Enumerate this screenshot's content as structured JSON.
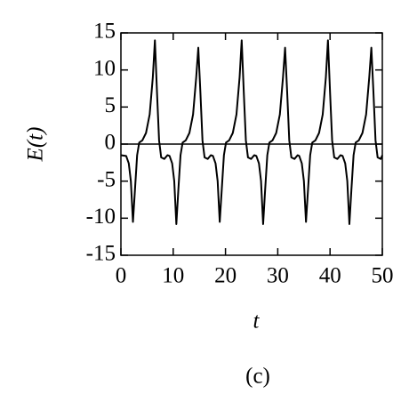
{
  "chart_data": {
    "type": "line",
    "xlabel": "t",
    "ylabel": "E(t)",
    "panel_label": "(c)",
    "xlim": [
      0,
      50
    ],
    "xticks": [
      0,
      10,
      20,
      30,
      40,
      50
    ],
    "ylim": [
      -15,
      15
    ],
    "yticks": [
      -15,
      -10,
      -5,
      0,
      5,
      10,
      15
    ],
    "zero_line": true,
    "series": [
      {
        "color": "#000000",
        "x": [
          0,
          1.0,
          1.5,
          1.9,
          2.3,
          2.7,
          3.1,
          3.5,
          4.1,
          4.8,
          5.5,
          6.1,
          6.5,
          6.9,
          7.3,
          7.7,
          8.3,
          8.9,
          9.3,
          9.8,
          10.2,
          10.6,
          11.0,
          11.4,
          11.8,
          12.4,
          13.1,
          13.8,
          14.4,
          14.8,
          15.2,
          15.6,
          16.0,
          16.6,
          17.2,
          17.6,
          18.1,
          18.5,
          18.9,
          19.3,
          19.7,
          20.1,
          20.7,
          21.4,
          22.1,
          22.7,
          23.1,
          23.5,
          23.9,
          24.3,
          24.9,
          25.5,
          25.9,
          26.4,
          26.8,
          27.2,
          27.6,
          28.0,
          28.4,
          29.0,
          29.7,
          30.4,
          31.0,
          31.4,
          31.8,
          32.2,
          32.6,
          33.2,
          33.8,
          34.1,
          34.6,
          35.0,
          35.4,
          35.8,
          36.2,
          36.6,
          37.2,
          37.9,
          38.6,
          39.2,
          39.6,
          40.0,
          40.4,
          40.8,
          41.4,
          42.0,
          42.4,
          42.9,
          43.3,
          43.7,
          44.1,
          44.5,
          44.9,
          45.5,
          46.2,
          46.9,
          47.5,
          47.9,
          48.3,
          48.7,
          49.1,
          49.7,
          50.0
        ],
        "values": [
          -1.5,
          -1.6,
          -2.6,
          -5,
          -10.5,
          -6,
          -1.5,
          0.2,
          0.5,
          1.5,
          4,
          9,
          14,
          7,
          0.5,
          -1.8,
          -2,
          -1.5,
          -1.6,
          -2.6,
          -5,
          -10.8,
          -6,
          -1.5,
          0.2,
          0.5,
          1.5,
          4,
          9,
          13,
          7,
          0.5,
          -1.8,
          -2,
          -1.5,
          -1.6,
          -2.6,
          -5,
          -10.5,
          -6,
          -1.5,
          0.2,
          0.5,
          1.5,
          4,
          9,
          14,
          7,
          0.5,
          -1.8,
          -2,
          -1.5,
          -1.6,
          -2.6,
          -5,
          -10.8,
          -6,
          -1.5,
          0.2,
          0.5,
          1.5,
          4,
          9,
          13,
          7,
          0.5,
          -1.8,
          -2,
          -1.5,
          -1.6,
          -2.6,
          -5,
          -10.5,
          -6,
          -1.5,
          0.2,
          0.5,
          1.5,
          4,
          9,
          14,
          7,
          0.5,
          -1.8,
          -2,
          -1.5,
          -1.6,
          -2.6,
          -5,
          -10.8,
          -6,
          -1.5,
          0.2,
          0.5,
          1.5,
          4,
          9,
          13,
          7,
          0.5,
          -1.8,
          -2,
          -1.5
        ]
      }
    ]
  }
}
